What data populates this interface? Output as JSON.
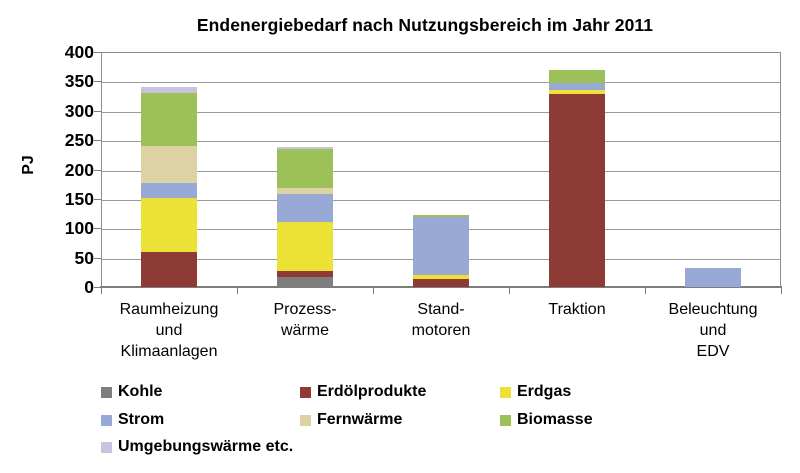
{
  "chart_data": {
    "type": "bar",
    "stacked": true,
    "title": "Endenergiebedarf nach Nutzungsbereich im Jahr 2011",
    "xlabel": "",
    "ylabel": "PJ",
    "ylim": [
      0,
      400
    ],
    "ytick_step": 50,
    "yticks": [
      400,
      350,
      300,
      250,
      200,
      150,
      100,
      50,
      0
    ],
    "grid": true,
    "legend_position": "bottom-left",
    "categories": [
      "Raumheizung und Klimaanlagen",
      "Prozesswärme",
      "Standmotoren",
      "Traktion",
      "Beleuchtung und EDV"
    ],
    "category_label_lines": [
      [
        "Raumheizung",
        "und",
        "Klimaanlagen"
      ],
      [
        "Prozess-",
        "wärme"
      ],
      [
        "Stand-",
        "motoren"
      ],
      [
        "Traktion"
      ],
      [
        "Beleuchtung",
        "und",
        "EDV"
      ]
    ],
    "unit": "PJ",
    "series": [
      {
        "name": "Kohle",
        "color": "#7e7e7e",
        "values": [
          0,
          17,
          0,
          0,
          0
        ]
      },
      {
        "name": "Erdölprodukte",
        "color": "#8e3b38",
        "values": [
          59,
          10,
          14,
          328,
          0
        ]
      },
      {
        "name": "Erdgas",
        "color": "#ece235",
        "values": [
          93,
          83,
          7,
          7,
          0
        ]
      },
      {
        "name": "Strom",
        "color": "#97a9d4",
        "values": [
          25,
          48,
          99,
          13,
          32
        ]
      },
      {
        "name": "Fernwärme",
        "color": "#dcd2a4",
        "values": [
          63,
          10,
          0,
          0,
          0
        ]
      },
      {
        "name": "Biomasse",
        "color": "#9cc159",
        "values": [
          90,
          67,
          2,
          21,
          0
        ]
      },
      {
        "name": "Umgebungswärme etc.",
        "color": "#c9c3dd",
        "values": [
          11,
          2,
          0,
          0,
          0
        ]
      }
    ],
    "totals": [
      341,
      237,
      122,
      369,
      32
    ],
    "legend_rows": [
      [
        "Kohle",
        "Erdölprodukte",
        "Erdgas"
      ],
      [
        "Strom",
        "Fernwärme",
        "Biomasse"
      ],
      [
        "Umgebungswärme etc."
      ]
    ]
  }
}
